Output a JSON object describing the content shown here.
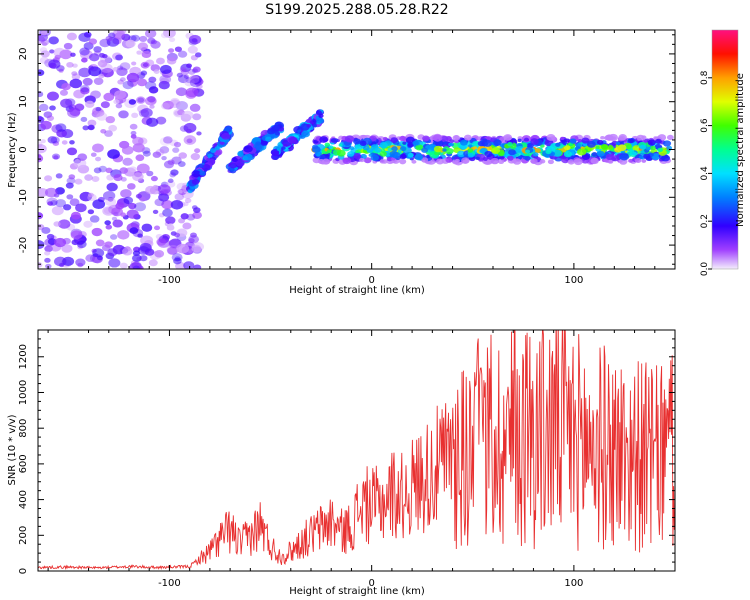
{
  "title": "S199.2025.288.05.28.R22",
  "chart_data": [
    {
      "type": "heatmap",
      "xlabel": "Height of straight line (km)",
      "ylabel": "Frequency (Hz)",
      "xlim": [
        -165,
        150
      ],
      "ylim": [
        -25,
        25
      ],
      "xticks": [
        -100,
        0,
        100
      ],
      "yticks": [
        -20,
        -10,
        0,
        10,
        20
      ],
      "grid": false,
      "colorbar": {
        "label": "Normalized spectral amplitude",
        "range": [
          0.0,
          1.0
        ],
        "ticks": [
          "0.0",
          "0.2",
          "0.4",
          "0.6",
          "0.8"
        ],
        "tick_values": [
          0.0,
          0.2,
          0.4,
          0.6,
          0.8
        ]
      },
      "features": [
        {
          "name": "diffuse noise",
          "x_range": [
            -165,
            -85
          ],
          "freq_range": [
            -25,
            25
          ],
          "amplitude": 0.05
        },
        {
          "name": "rising streak 1",
          "x_range": [
            -90,
            -70
          ],
          "freq_range": [
            -8,
            4
          ],
          "amplitude": 0.35
        },
        {
          "name": "rising streak 2",
          "x_range": [
            -70,
            -45
          ],
          "freq_range": [
            -4,
            5
          ],
          "amplitude": 0.35
        },
        {
          "name": "rising streak 3",
          "x_range": [
            -48,
            -25
          ],
          "freq_range": [
            -1,
            7
          ],
          "amplitude": 0.4
        },
        {
          "name": "main band",
          "x_range": [
            -28,
            148
          ],
          "freq_center": 0,
          "freq_halfwidth": 2,
          "amplitude": 0.9
        }
      ]
    },
    {
      "type": "line",
      "xlabel": "Height of straight line (km)",
      "ylabel": "SNR (10 * v/v)",
      "xlim": [
        -165,
        150
      ],
      "ylim": [
        0,
        1350
      ],
      "xticks": [
        -100,
        0,
        100
      ],
      "yticks": [
        0,
        200,
        400,
        600,
        800,
        1000,
        1200
      ],
      "grid": false,
      "series": [
        {
          "name": "SNR",
          "color": "#e83030",
          "x": [
            -165,
            -150,
            -135,
            -120,
            -105,
            -90,
            -80,
            -75,
            -70,
            -65,
            -60,
            -55,
            -50,
            -45,
            -40,
            -35,
            -30,
            -25,
            -20,
            -15,
            -10,
            -5,
            0,
            5,
            10,
            15,
            20,
            25,
            30,
            35,
            40,
            45,
            50,
            55,
            60,
            65,
            70,
            75,
            80,
            85,
            90,
            95,
            100,
            105,
            110,
            115,
            120,
            125,
            130,
            135,
            140,
            145,
            150
          ],
          "y": [
            20,
            22,
            18,
            25,
            20,
            25,
            110,
            180,
            230,
            150,
            200,
            260,
            140,
            80,
            110,
            160,
            200,
            240,
            280,
            220,
            250,
            380,
            360,
            380,
            440,
            420,
            470,
            520,
            560,
            600,
            640,
            650,
            680,
            700,
            720,
            740,
            760,
            780,
            800,
            760,
            820,
            800,
            740,
            720,
            700,
            690,
            680,
            660,
            650,
            640,
            620,
            640,
            660
          ]
        }
      ]
    }
  ]
}
